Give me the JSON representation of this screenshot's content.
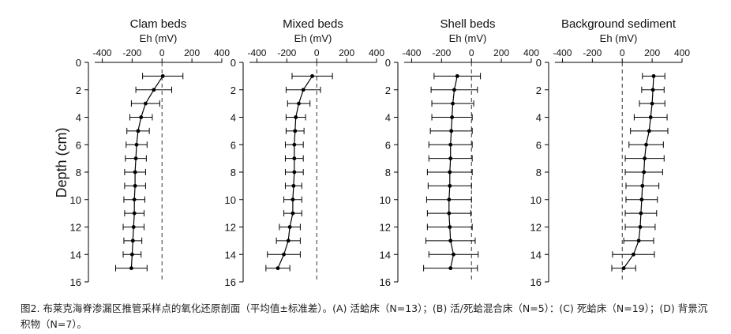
{
  "figure": {
    "y_axis_label": "Depth (cm)",
    "caption": "图2. 布莱克海脊渗漏区推管采样点的氧化还原剖面（平均值±标准差）。(A) 活蛤床（N=13）；(B) 活/死蛤混合床（N=5）：(C) 死蛤床（N=19）；(D) 背景沉积物（N=7）。"
  },
  "chart_data": [
    {
      "type": "line",
      "title": "Clam beds",
      "xlabel": "Eh (mV)",
      "ylabel": "Depth (cm)",
      "xlim": [
        -450,
        400
      ],
      "ylim": [
        0,
        16
      ],
      "x_ticks": [
        -400,
        -200,
        0,
        200,
        400
      ],
      "y_ticks": [
        0,
        2,
        4,
        6,
        8,
        10,
        12,
        14,
        16
      ],
      "depth": [
        1,
        2,
        3,
        4,
        5,
        6,
        7,
        8,
        9,
        10,
        11,
        12,
        13,
        14,
        15
      ],
      "eh": [
        5,
        -55,
        -110,
        -140,
        -160,
        -170,
        -175,
        -180,
        -180,
        -185,
        -185,
        -190,
        -195,
        -200,
        -205
      ],
      "sd": [
        135,
        120,
        95,
        75,
        75,
        70,
        70,
        70,
        70,
        70,
        65,
        70,
        60,
        60,
        105
      ],
      "zero_line": "dashed"
    },
    {
      "type": "line",
      "title": "Mixed beds",
      "xlabel": "Eh (mV)",
      "ylabel": "",
      "xlim": [
        -450,
        400
      ],
      "ylim": [
        0,
        16
      ],
      "x_ticks": [
        -400,
        -200,
        0,
        200,
        400
      ],
      "y_ticks": [
        0,
        2,
        4,
        6,
        8,
        10,
        12,
        14,
        16
      ],
      "depth": [
        1,
        2,
        3,
        4,
        5,
        6,
        7,
        8,
        9,
        10,
        11,
        12,
        13,
        14,
        15
      ],
      "eh": [
        -30,
        -90,
        -120,
        -140,
        -145,
        -150,
        -150,
        -150,
        -155,
        -160,
        -160,
        -180,
        -190,
        -220,
        -260
      ],
      "sd": [
        135,
        115,
        75,
        65,
        60,
        60,
        60,
        60,
        55,
        60,
        60,
        70,
        80,
        110,
        80
      ],
      "zero_line": "dashed"
    },
    {
      "type": "line",
      "title": "Shell beds",
      "xlabel": "Eh (mV)",
      "ylabel": "",
      "xlim": [
        -450,
        400
      ],
      "ylim": [
        0,
        16
      ],
      "x_ticks": [
        -400,
        -200,
        0,
        200,
        400
      ],
      "y_ticks": [
        0,
        2,
        4,
        6,
        8,
        10,
        12,
        14,
        16
      ],
      "depth": [
        1,
        2,
        3,
        4,
        5,
        6,
        7,
        8,
        9,
        10,
        11,
        12,
        13,
        14,
        15
      ],
      "eh": [
        -95,
        -115,
        -125,
        -130,
        -135,
        -140,
        -140,
        -145,
        -145,
        -150,
        -150,
        -145,
        -140,
        -120,
        -140
      ],
      "sd": [
        155,
        155,
        140,
        135,
        140,
        145,
        145,
        150,
        145,
        150,
        145,
        150,
        165,
        165,
        180
      ],
      "zero_line": "dashed"
    },
    {
      "type": "line",
      "title": "Background sediment",
      "xlabel": "Eh (mV)",
      "ylabel": "",
      "xlim": [
        -450,
        400
      ],
      "ylim": [
        0,
        16
      ],
      "x_ticks": [
        -400,
        -200,
        0,
        200,
        400
      ],
      "y_ticks": [
        0,
        2,
        4,
        6,
        8,
        10,
        12,
        14,
        16
      ],
      "depth": [
        1,
        2,
        3,
        4,
        5,
        6,
        7,
        8,
        9,
        10,
        11,
        12,
        13,
        14,
        15
      ],
      "eh": [
        210,
        205,
        200,
        190,
        180,
        160,
        150,
        145,
        135,
        130,
        125,
        120,
        110,
        75,
        10
      ],
      "sd": [
        75,
        75,
        85,
        110,
        125,
        115,
        130,
        125,
        110,
        105,
        105,
        100,
        100,
        140,
        80
      ],
      "zero_line": "dashed"
    }
  ]
}
